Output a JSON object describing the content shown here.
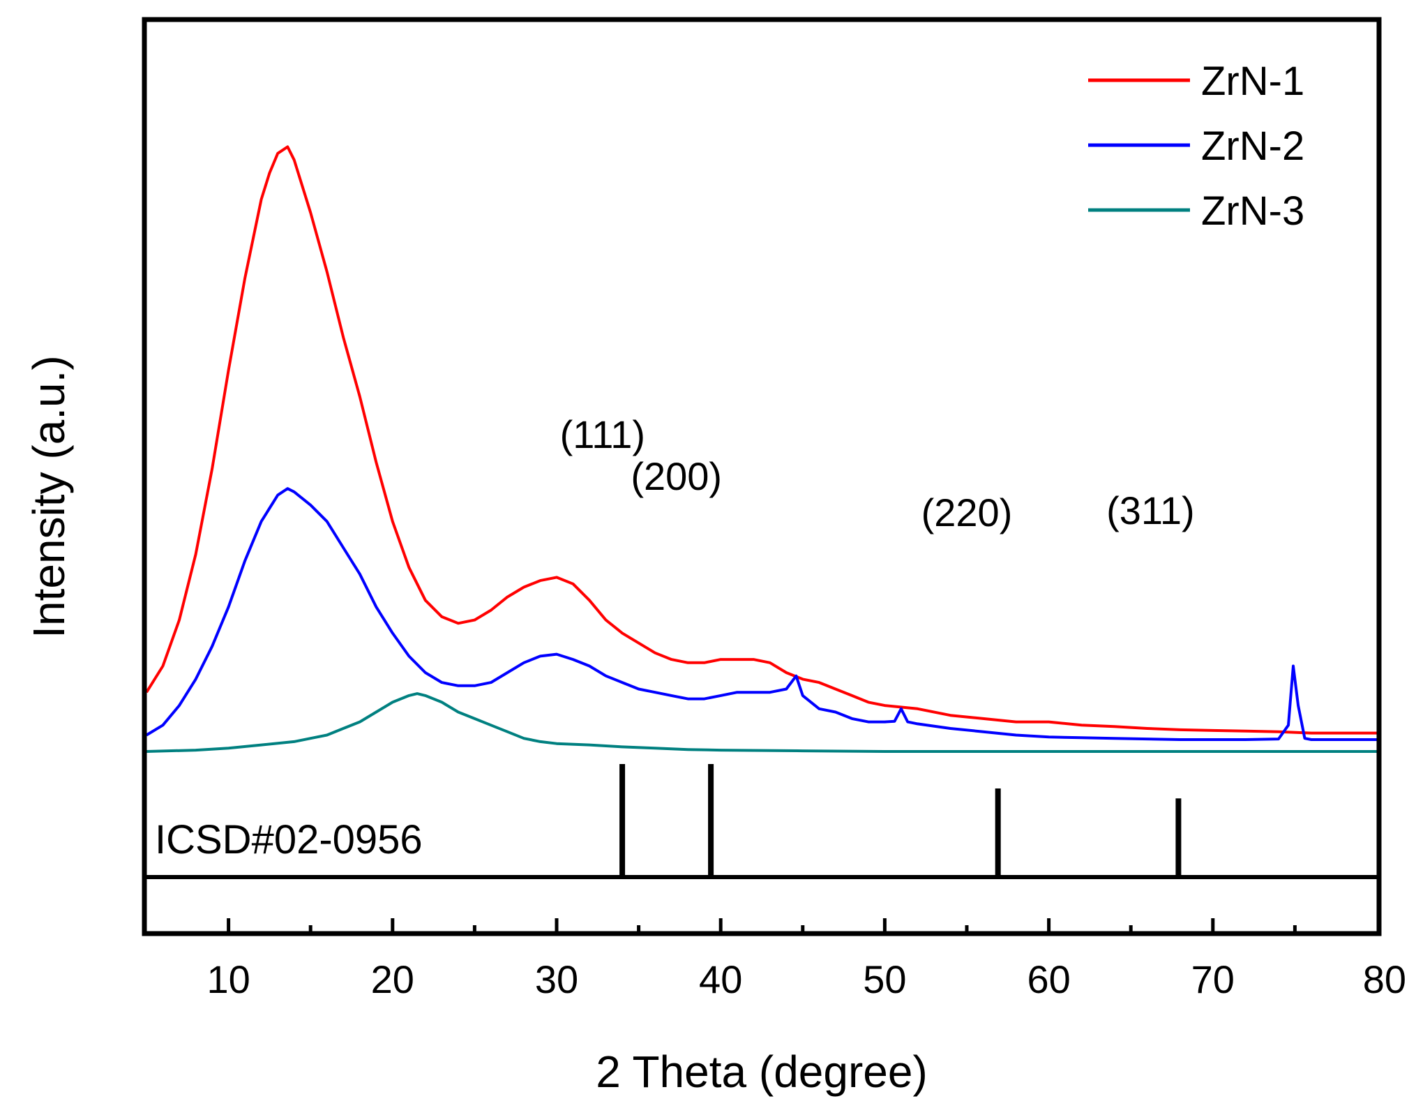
{
  "chart_data": {
    "type": "line",
    "title": "",
    "xlabel": "2 Theta (degree)",
    "ylabel": "Intensity (a.u.)",
    "xlim": [
      5,
      80
    ],
    "ylim": [
      0,
      100
    ],
    "x_ticks": [
      10,
      20,
      30,
      40,
      50,
      60,
      70,
      80
    ],
    "x_tick_labels": [
      "10",
      "20",
      "30",
      "40",
      "50",
      "60",
      "70",
      "80"
    ],
    "x_minor_ticks": [
      15,
      25,
      35,
      45,
      55,
      65,
      75
    ],
    "legend_position": "top-right",
    "series": [
      {
        "name": "ZrN-1",
        "color": "#ff0000",
        "points": [
          [
            5,
            9
          ],
          [
            6,
            13
          ],
          [
            7,
            20
          ],
          [
            8,
            30
          ],
          [
            9,
            43
          ],
          [
            10,
            58
          ],
          [
            11,
            72
          ],
          [
            12,
            84
          ],
          [
            12.5,
            88
          ],
          [
            13,
            91
          ],
          [
            13.6,
            92
          ],
          [
            14,
            90
          ],
          [
            15,
            82
          ],
          [
            16,
            73
          ],
          [
            17,
            63
          ],
          [
            18,
            54
          ],
          [
            19,
            44
          ],
          [
            20,
            35
          ],
          [
            21,
            28
          ],
          [
            22,
            23
          ],
          [
            23,
            20.5
          ],
          [
            24,
            19.5
          ],
          [
            25,
            20
          ],
          [
            26,
            21.5
          ],
          [
            27,
            23.5
          ],
          [
            28,
            25
          ],
          [
            29,
            26
          ],
          [
            30,
            26.5
          ],
          [
            31,
            25.5
          ],
          [
            32,
            23
          ],
          [
            33,
            20
          ],
          [
            34,
            18
          ],
          [
            35,
            16.5
          ],
          [
            36,
            15
          ],
          [
            37,
            14
          ],
          [
            38,
            13.5
          ],
          [
            39,
            13.5
          ],
          [
            40,
            14
          ],
          [
            41,
            14
          ],
          [
            42,
            14
          ],
          [
            43,
            13.5
          ],
          [
            44,
            12
          ],
          [
            45,
            11
          ],
          [
            46,
            10.5
          ],
          [
            47,
            9.5
          ],
          [
            48,
            8.5
          ],
          [
            49,
            7.5
          ],
          [
            50,
            7
          ],
          [
            52,
            6.5
          ],
          [
            54,
            5.5
          ],
          [
            56,
            5
          ],
          [
            58,
            4.5
          ],
          [
            60,
            4.5
          ],
          [
            62,
            4
          ],
          [
            64,
            3.8
          ],
          [
            66,
            3.5
          ],
          [
            68,
            3.3
          ],
          [
            70,
            3.2
          ],
          [
            72,
            3.1
          ],
          [
            74,
            3
          ],
          [
            76,
            2.8
          ],
          [
            78,
            2.8
          ],
          [
            80,
            2.8
          ]
        ]
      },
      {
        "name": "ZrN-2",
        "color": "#0000ff",
        "points": [
          [
            5,
            2.5
          ],
          [
            6,
            4
          ],
          [
            7,
            7
          ],
          [
            8,
            11
          ],
          [
            9,
            16
          ],
          [
            10,
            22
          ],
          [
            11,
            29
          ],
          [
            12,
            35
          ],
          [
            13,
            39
          ],
          [
            13.6,
            40
          ],
          [
            14,
            39.5
          ],
          [
            15,
            37.5
          ],
          [
            16,
            35
          ],
          [
            17,
            31
          ],
          [
            18,
            27
          ],
          [
            19,
            22
          ],
          [
            20,
            18
          ],
          [
            21,
            14.5
          ],
          [
            22,
            12
          ],
          [
            23,
            10.5
          ],
          [
            24,
            10
          ],
          [
            25,
            10
          ],
          [
            26,
            10.5
          ],
          [
            27,
            12
          ],
          [
            28,
            13.5
          ],
          [
            29,
            14.5
          ],
          [
            30,
            14.8
          ],
          [
            31,
            14
          ],
          [
            32,
            13
          ],
          [
            33,
            11.5
          ],
          [
            34,
            10.5
          ],
          [
            35,
            9.5
          ],
          [
            36,
            9
          ],
          [
            37,
            8.5
          ],
          [
            38,
            8
          ],
          [
            39,
            8
          ],
          [
            40,
            8.5
          ],
          [
            41,
            9
          ],
          [
            42,
            9
          ],
          [
            43,
            9
          ],
          [
            44,
            9.5
          ],
          [
            44.6,
            11.5
          ],
          [
            45,
            8.5
          ],
          [
            46,
            6.5
          ],
          [
            47,
            6
          ],
          [
            48,
            5
          ],
          [
            49,
            4.5
          ],
          [
            50,
            4.5
          ],
          [
            50.6,
            4.6
          ],
          [
            51,
            6.5
          ],
          [
            51.4,
            4.5
          ],
          [
            52,
            4.2
          ],
          [
            54,
            3.5
          ],
          [
            56,
            3
          ],
          [
            58,
            2.5
          ],
          [
            60,
            2.2
          ],
          [
            62,
            2.1
          ],
          [
            64,
            2
          ],
          [
            66,
            1.9
          ],
          [
            68,
            1.8
          ],
          [
            70,
            1.8
          ],
          [
            72,
            1.8
          ],
          [
            74,
            1.9
          ],
          [
            74.6,
            4
          ],
          [
            74.9,
            13
          ],
          [
            75.2,
            7
          ],
          [
            75.6,
            2
          ],
          [
            76,
            1.8
          ],
          [
            78,
            1.8
          ],
          [
            80,
            1.8
          ]
        ]
      },
      {
        "name": "ZrN-3",
        "color": "#008080",
        "points": [
          [
            5,
            0
          ],
          [
            8,
            0.2
          ],
          [
            10,
            0.5
          ],
          [
            12,
            1
          ],
          [
            14,
            1.5
          ],
          [
            15,
            2
          ],
          [
            16,
            2.5
          ],
          [
            17,
            3.5
          ],
          [
            18,
            4.5
          ],
          [
            19,
            6
          ],
          [
            20,
            7.5
          ],
          [
            21,
            8.5
          ],
          [
            21.5,
            8.8
          ],
          [
            22,
            8.5
          ],
          [
            23,
            7.5
          ],
          [
            24,
            6
          ],
          [
            25,
            5
          ],
          [
            26,
            4
          ],
          [
            27,
            3
          ],
          [
            28,
            2
          ],
          [
            29,
            1.5
          ],
          [
            30,
            1.2
          ],
          [
            32,
            1
          ],
          [
            34,
            0.7
          ],
          [
            36,
            0.5
          ],
          [
            38,
            0.3
          ],
          [
            40,
            0.2
          ],
          [
            45,
            0.1
          ],
          [
            50,
            0
          ],
          [
            60,
            0
          ],
          [
            70,
            0
          ],
          [
            80,
            0
          ]
        ]
      }
    ],
    "reference": {
      "label": "ICSD#02-0956",
      "peaks": [
        {
          "x": 34.0,
          "rel_intensity": 100
        },
        {
          "x": 39.4,
          "rel_intensity": 100
        },
        {
          "x": 56.9,
          "rel_intensity": 78
        },
        {
          "x": 67.9,
          "rel_intensity": 69
        }
      ]
    },
    "annotations": [
      {
        "text": "(111)",
        "x": 34.5,
        "y_level": 1.0
      },
      {
        "text": "(200)",
        "x": 39.0,
        "y_level": 0.78
      },
      {
        "text": "(220)",
        "x": 56.7,
        "y_level": 0.59
      },
      {
        "text": "(311)",
        "x": 67.9,
        "y_level": 0.6
      }
    ]
  }
}
